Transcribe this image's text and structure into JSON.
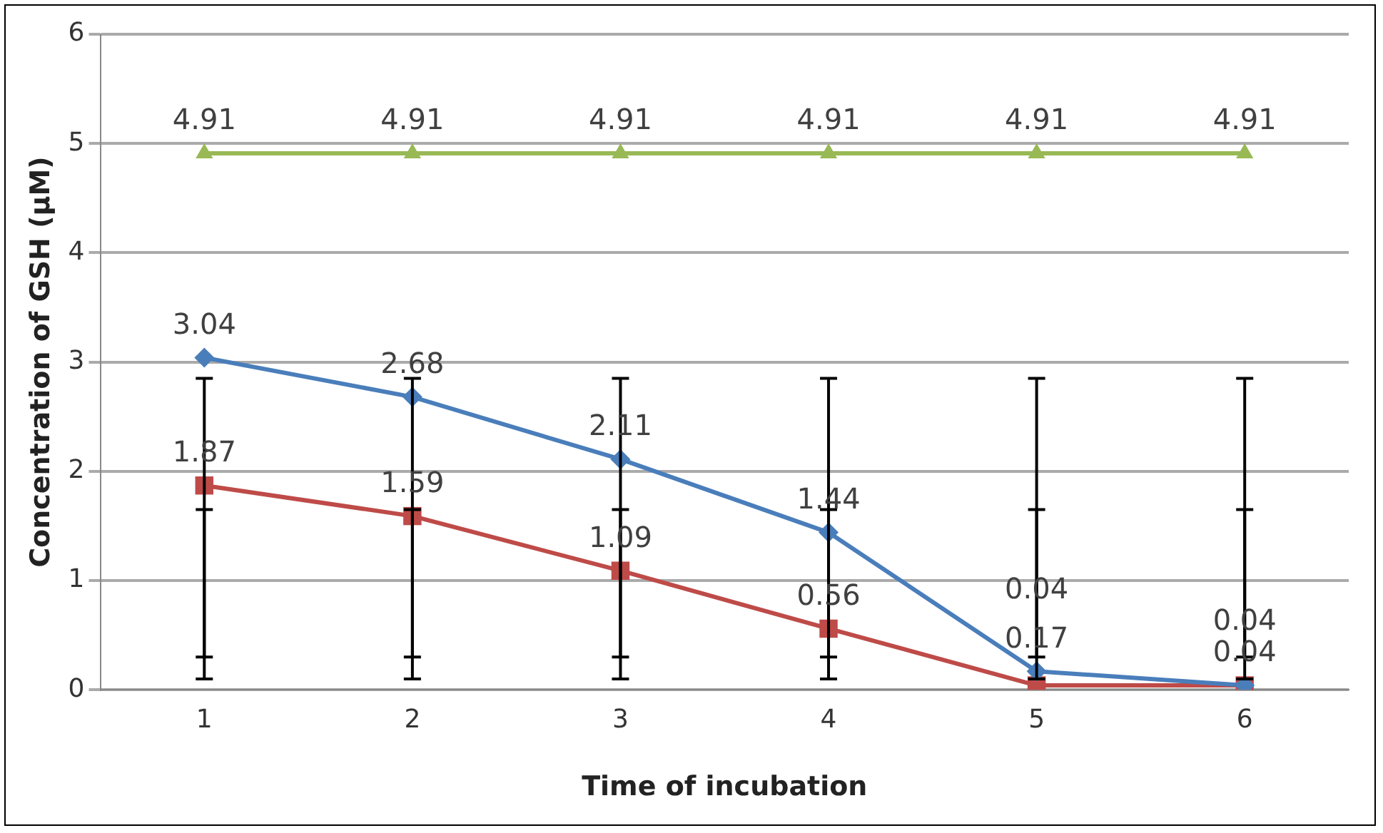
{
  "chart_data": {
    "type": "line",
    "xlabel": "Time of incubation",
    "ylabel": "Concentration of GSH (µM)",
    "categories": [
      "1",
      "2",
      "3",
      "4",
      "5",
      "6"
    ],
    "ylim": [
      0,
      6
    ],
    "yticks": [
      0,
      1,
      2,
      3,
      4,
      5,
      6
    ],
    "grid": "y",
    "legend": false,
    "data_labels": true,
    "line_style": "solid",
    "series": [
      {
        "color": "#4a7ebb",
        "marker": "diamond",
        "values": [
          3.04,
          2.68,
          2.11,
          1.44,
          0.17,
          0.04
        ],
        "errors": [
          [
            0.3,
            1.65
          ],
          [
            0.3,
            1.65
          ],
          [
            0.3,
            1.65
          ],
          [
            0.3,
            1.65
          ],
          [
            0.3,
            1.65
          ],
          [
            0.3,
            1.65
          ]
        ]
      },
      {
        "color": "#be4b48",
        "marker": "square",
        "values": [
          1.87,
          1.59,
          1.09,
          0.56,
          0.04,
          0.04
        ],
        "errors": [
          [
            0.1,
            2.85
          ],
          [
            0.1,
            2.85
          ],
          [
            0.1,
            2.85
          ],
          [
            0.1,
            2.85
          ],
          [
            0.1,
            2.85
          ],
          [
            0.1,
            2.85
          ]
        ]
      },
      {
        "color": "#98b954",
        "marker": "triangle",
        "values": [
          4.91,
          4.91,
          4.91,
          4.91,
          4.91,
          4.91
        ]
      }
    ]
  }
}
